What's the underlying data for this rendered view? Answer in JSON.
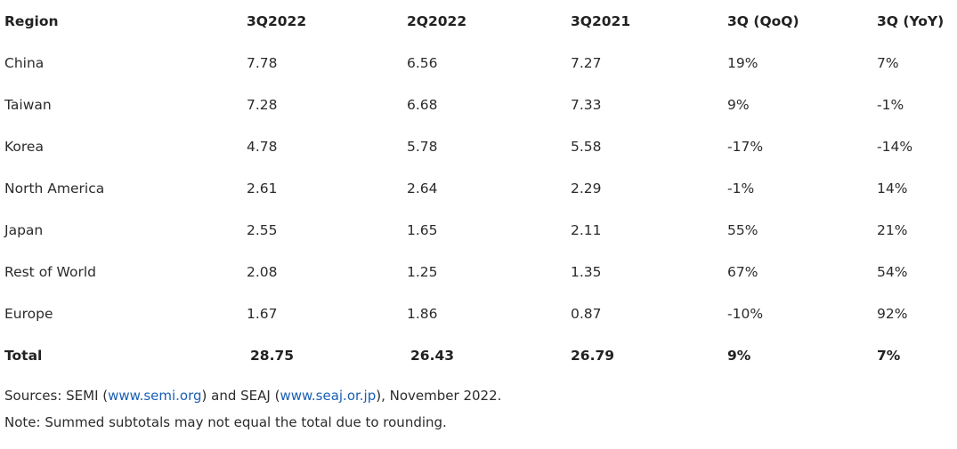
{
  "table": {
    "headers": [
      "Region",
      "3Q2022",
      "2Q2022",
      "3Q2021",
      "3Q (QoQ)",
      "3Q (YoY)"
    ],
    "rows": [
      [
        "China",
        "7.78",
        "6.56",
        "7.27",
        "19%",
        "7%"
      ],
      [
        "Taiwan",
        "7.28",
        "6.68",
        "7.33",
        "9%",
        "-1%"
      ],
      [
        "Korea",
        "4.78",
        "5.78",
        "5.58",
        "-17%",
        "-14%"
      ],
      [
        "North America",
        "2.61",
        "2.64",
        "2.29",
        "-1%",
        "14%"
      ],
      [
        "Japan",
        "2.55",
        "1.65",
        "2.11",
        "55%",
        "21%"
      ],
      [
        "Rest of World",
        "2.08",
        "1.25",
        "1.35",
        "67%",
        "54%"
      ],
      [
        "Europe",
        "1.67",
        "1.86",
        "0.87",
        "-10%",
        "92%"
      ]
    ],
    "total": [
      "Total",
      "28.75",
      "26.43",
      "26.79",
      "9%",
      "7%"
    ]
  },
  "footnotes": {
    "sources_prefix": "Sources: SEMI (",
    "semi_link": "www.semi.org",
    "sources_middle": ") and SEAJ (",
    "seaj_link": "www.seaj.or.jp",
    "sources_suffix": "), November 2022.",
    "note": "Note: Summed subtotals may not equal the total due to rounding."
  },
  "colors": {
    "text": "#2b2b2b",
    "link": "#1a5fb4",
    "background": "#ffffff"
  }
}
